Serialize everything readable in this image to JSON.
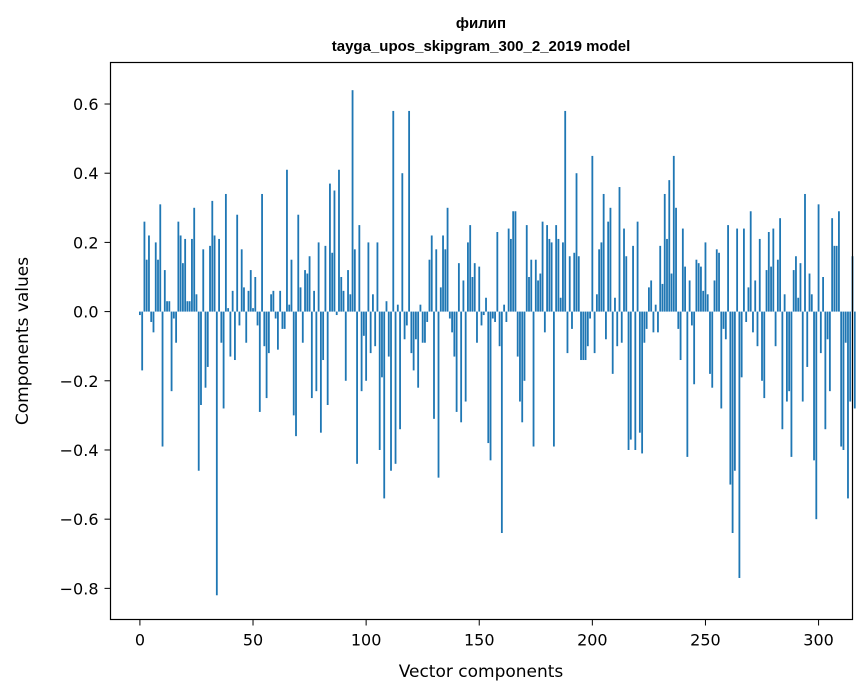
{
  "chart_data": {
    "type": "bar",
    "title_lines": [
      "филип",
      "tayga_upos_skipgram_300_2_2019 model"
    ],
    "xlabel": "Vector components",
    "ylabel": "Components values",
    "xlim": [
      -13,
      315
    ],
    "ylim": [
      -0.89,
      0.72
    ],
    "xticks": [
      0,
      50,
      100,
      150,
      200,
      250,
      300
    ],
    "yticks": [
      -0.8,
      -0.6,
      -0.4,
      -0.2,
      0.0,
      0.2,
      0.4,
      0.6
    ],
    "ytick_labels": [
      "−0.8",
      "−0.6",
      "−0.4",
      "−0.2",
      "0.0",
      "0.2",
      "0.4",
      "0.6"
    ],
    "bar_color": "#1f77b4",
    "grid": false,
    "values": [
      -0.01,
      -0.17,
      0.26,
      0.15,
      0.22,
      -0.03,
      -0.06,
      0.2,
      0.15,
      0.31,
      -0.39,
      0.12,
      0.03,
      0.03,
      -0.23,
      -0.02,
      -0.09,
      0.26,
      0.22,
      0.14,
      0.21,
      0.03,
      0.03,
      0.21,
      0.3,
      0.05,
      -0.46,
      -0.27,
      0.18,
      -0.22,
      -0.16,
      0.19,
      0.32,
      0.22,
      -0.82,
      0.21,
      -0.09,
      -0.28,
      0.34,
      0.01,
      -0.13,
      0.06,
      -0.14,
      0.28,
      -0.04,
      0.18,
      0.07,
      -0.09,
      0.06,
      0.12,
      0.01,
      0.1,
      -0.04,
      -0.29,
      0.34,
      -0.1,
      -0.25,
      -0.12,
      0.05,
      0.06,
      -0.02,
      -0.11,
      0.06,
      -0.05,
      -0.05,
      0.41,
      0.02,
      0.15,
      -0.3,
      -0.36,
      0.28,
      0.07,
      -0.09,
      0.12,
      0.11,
      0.16,
      -0.25,
      0.06,
      -0.23,
      0.2,
      -0.35,
      -0.14,
      0.19,
      -0.27,
      0.37,
      0.17,
      0.35,
      -0.01,
      0.41,
      0.1,
      0.06,
      -0.2,
      0.12,
      0.05,
      0.64,
      0.18,
      -0.44,
      0.25,
      -0.23,
      -0.07,
      -0.2,
      0.2,
      -0.12,
      0.05,
      -0.1,
      0.2,
      -0.4,
      -0.19,
      -0.54,
      0.03,
      -0.13,
      -0.46,
      0.58,
      -0.44,
      0.02,
      -0.34,
      0.4,
      -0.08,
      -0.04,
      0.58,
      -0.12,
      -0.17,
      -0.08,
      -0.22,
      0.02,
      -0.09,
      -0.09,
      -0.03,
      0.15,
      0.22,
      -0.31,
      0.18,
      -0.48,
      0.07,
      0.22,
      0.18,
      0.3,
      -0.02,
      -0.06,
      -0.13,
      -0.29,
      0.14,
      -0.32,
      0.09,
      -0.26,
      0.2,
      0.25,
      0.1,
      0.14,
      -0.09,
      0.13,
      -0.04,
      -0.01,
      0.04,
      -0.38,
      -0.43,
      -0.02,
      -0.03,
      0.23,
      -0.1,
      -0.64,
      0.02,
      -0.03,
      0.24,
      0.21,
      0.29,
      0.29,
      -0.13,
      -0.26,
      -0.32,
      -0.2,
      0.25,
      0.1,
      0.15,
      -0.39,
      0.15,
      0.09,
      0.11,
      0.26,
      -0.06,
      0.25,
      0.21,
      0.2,
      -0.39,
      0.25,
      0.21,
      0.04,
      0.2,
      0.58,
      -0.12,
      0.16,
      -0.05,
      0.17,
      0.4,
      0.16,
      -0.14,
      -0.14,
      -0.14,
      -0.1,
      -0.02,
      0.45,
      -0.12,
      0.05,
      0.18,
      0.2,
      0.34,
      -0.08,
      0.26,
      0.3,
      -0.18,
      0.04,
      -0.1,
      0.36,
      -0.09,
      0.24,
      0.16,
      -0.4,
      -0.37,
      0.19,
      -0.4,
      0.26,
      -0.35,
      -0.41,
      -0.09,
      -0.05,
      0.07,
      0.09,
      -0.06,
      0.02,
      -0.06,
      0.19,
      0.08,
      0.34,
      0.21,
      0.38,
      0.11,
      0.45,
      0.3,
      -0.05,
      -0.14,
      0.24,
      0.13,
      -0.42,
      0.09,
      -0.04,
      -0.21,
      0.15,
      0.14,
      0.13,
      0.06,
      0.2,
      0.05,
      -0.18,
      -0.22,
      0.09,
      0.18,
      0.17,
      -0.28,
      -0.05,
      -0.08,
      0.25,
      -0.5,
      -0.64,
      -0.46,
      0.24,
      -0.77,
      -0.19,
      0.24,
      -0.03,
      0.07,
      0.29,
      -0.06,
      0.09,
      -0.1,
      0.21,
      -0.2,
      -0.25,
      0.12,
      0.23,
      0.13,
      0.24,
      -0.1,
      0.15,
      0.27,
      -0.34,
      0.05,
      -0.26,
      -0.23,
      -0.42,
      0.12,
      0.16,
      0.04,
      0.14,
      -0.26,
      0.34,
      -0.16,
      0.11,
      0.05,
      -0.43,
      -0.6,
      0.31,
      -0.12,
      0.1,
      -0.34,
      -0.08,
      -0.23,
      0.27,
      0.19,
      0.19,
      0.29,
      -0.39,
      -0.4,
      -0.09,
      -0.54,
      -0.26,
      0.16,
      -0.28
    ]
  }
}
